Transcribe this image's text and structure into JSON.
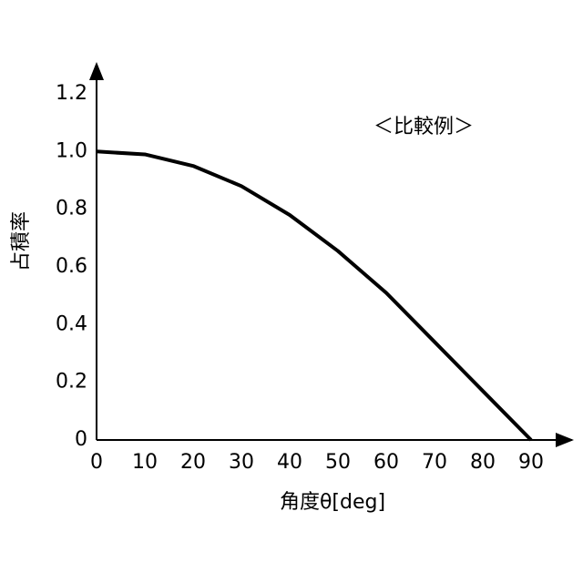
{
  "chart_data": {
    "type": "line",
    "annotation": "＜比較例＞",
    "x_label": "角度θ[deg]",
    "y_label": "占積率",
    "x": [
      0,
      10,
      20,
      30,
      40,
      50,
      60,
      70,
      80,
      90
    ],
    "series": [
      {
        "color": "#000000",
        "values": [
          1.0,
          0.99,
          0.95,
          0.88,
          0.78,
          0.655,
          0.51,
          0.34,
          0.17,
          0.0
        ]
      }
    ],
    "xlim": [
      0,
      98
    ],
    "ylim": [
      0,
      1.3
    ],
    "xticks": [
      0,
      10,
      20,
      30,
      40,
      50,
      60,
      70,
      80,
      90
    ],
    "yticks": [
      0,
      0.2,
      0.4,
      0.6,
      0.8,
      {
        "value": 1,
        "label": "1.0"
      },
      1.2
    ],
    "grid": false
  }
}
